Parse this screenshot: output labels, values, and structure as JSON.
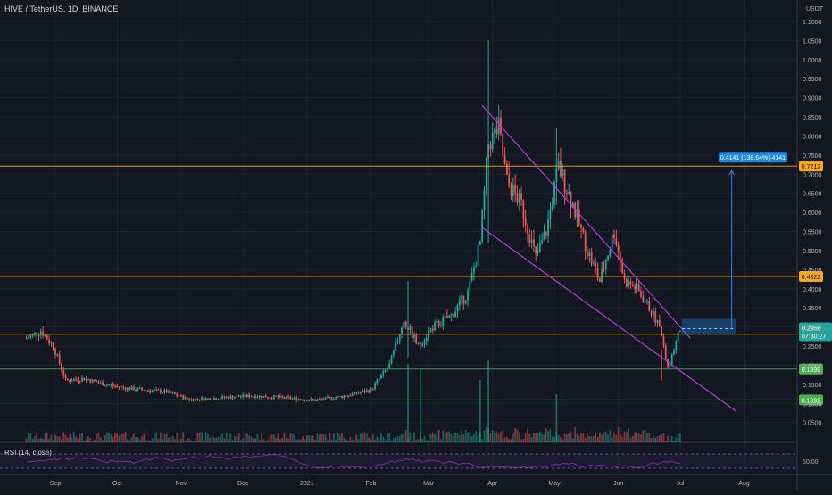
{
  "header": {
    "symbol": "HIVE / TetherUS, 1D, BINANCE",
    "currency": "USDT"
  },
  "rsi": {
    "label": "RSI (14, close)",
    "level": "50.00"
  },
  "colors": {
    "background": "#131722",
    "up": "#26a69a",
    "down": "#ef5350",
    "orange": "#f5a623",
    "green_line": "#4caf50",
    "purple": "#b43cd6",
    "blue_box": "#1e88e5",
    "axis_text": "#b2b5be"
  },
  "chart_data": {
    "type": "candlestick",
    "title": "HIVE / TetherUS, 1D, BINANCE",
    "ylabel": "USDT",
    "yticks": [
      "1.1000",
      "1.0500",
      "1.0000",
      "0.9500",
      "0.9000",
      "0.8500",
      "0.8000",
      "0.7500",
      "0.7000",
      "0.6500",
      "0.6000",
      "0.5500",
      "0.5000",
      "0.4500",
      "0.4000",
      "0.3500",
      "0.3000",
      "0.2500",
      "0.2000",
      "0.1500",
      "0.1000",
      "0.0500"
    ],
    "ylim": [
      0,
      1.15
    ],
    "xticks": [
      "Sep",
      "Oct",
      "Nov",
      "Dec",
      "2021",
      "Feb",
      "Mar",
      "Apr",
      "May",
      "Jun",
      "Jul",
      "Aug"
    ],
    "horizontal_levels": [
      {
        "value": 0.7212,
        "label": "0.7212",
        "color": "#f5a623"
      },
      {
        "value": 0.4322,
        "label": "0.4322",
        "color": "#f5a623"
      },
      {
        "value": 0.2811,
        "label": "0.2811",
        "color": "#f5a623"
      },
      {
        "value": 0.1899,
        "label": "0.1899",
        "color": "#4caf50"
      },
      {
        "value": 0.1092,
        "label": "0.1092",
        "color": "#4caf50"
      }
    ],
    "last_price": {
      "value": 0.2956,
      "label": "0.2956",
      "countdown": "07:30:27"
    },
    "measurement": {
      "label": "0.4141 (138.64%) 4141"
    },
    "price_path": [
      [
        "2020-08-18",
        0.27
      ],
      [
        "2020-08-25",
        0.29
      ],
      [
        "2020-08-31",
        0.25
      ],
      [
        "2020-09-06",
        0.16
      ],
      [
        "2020-09-15",
        0.165
      ],
      [
        "2020-09-25",
        0.15
      ],
      [
        "2020-10-05",
        0.14
      ],
      [
        "2020-10-15",
        0.135
      ],
      [
        "2020-10-25",
        0.13
      ],
      [
        "2020-11-05",
        0.11
      ],
      [
        "2020-11-20",
        0.115
      ],
      [
        "2020-12-05",
        0.12
      ],
      [
        "2020-12-20",
        0.115
      ],
      [
        "2021-01-05",
        0.108
      ],
      [
        "2021-01-20",
        0.12
      ],
      [
        "2021-02-01",
        0.135
      ],
      [
        "2021-02-10",
        0.2
      ],
      [
        "2021-02-17",
        0.32
      ],
      [
        "2021-02-24",
        0.25
      ],
      [
        "2021-03-03",
        0.3
      ],
      [
        "2021-03-12",
        0.33
      ],
      [
        "2021-03-20",
        0.39
      ],
      [
        "2021-03-26",
        0.52
      ],
      [
        "2021-03-30",
        0.78
      ],
      [
        "2021-04-04",
        0.82
      ],
      [
        "2021-04-08",
        0.68
      ],
      [
        "2021-04-15",
        0.62
      ],
      [
        "2021-04-22",
        0.48
      ],
      [
        "2021-04-27",
        0.55
      ],
      [
        "2021-05-03",
        0.72
      ],
      [
        "2021-05-10",
        0.62
      ],
      [
        "2021-05-17",
        0.5
      ],
      [
        "2021-05-23",
        0.42
      ],
      [
        "2021-05-30",
        0.55
      ],
      [
        "2021-06-04",
        0.42
      ],
      [
        "2021-06-10",
        0.4
      ],
      [
        "2021-06-16",
        0.35
      ],
      [
        "2021-06-21",
        0.3
      ],
      [
        "2021-06-25",
        0.19
      ],
      [
        "2021-07-01",
        0.2956
      ]
    ],
    "channel_upper": [
      [
        "2021-03-27",
        0.88
      ],
      [
        "2021-07-06",
        0.27
      ]
    ],
    "channel_lower": [
      [
        "2021-03-27",
        0.56
      ],
      [
        "2021-07-28",
        0.08
      ]
    ]
  }
}
